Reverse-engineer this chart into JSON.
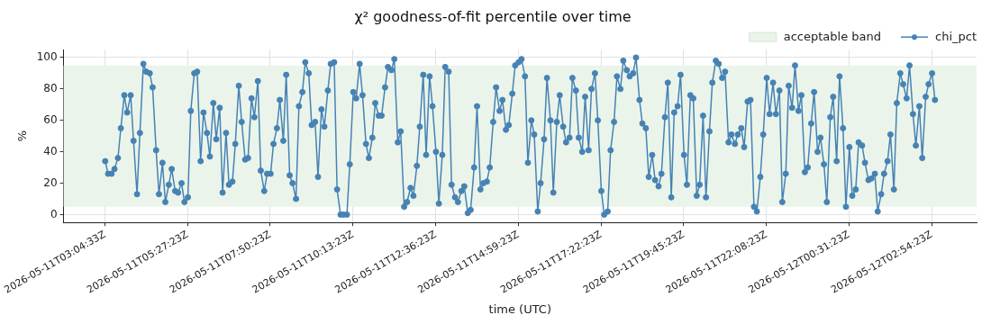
{
  "chart_data": {
    "type": "line",
    "title": "χ² goodness-of-fit percentile over time",
    "xlabel": "time (UTC)",
    "ylabel": "%",
    "x": [
      "2026-05-11T03:05",
      "2026-05-11T03:10",
      "2026-05-11T03:16",
      "2026-05-11T03:21",
      "2026-05-11T03:27",
      "2026-05-11T03:32",
      "2026-05-11T03:38",
      "2026-05-11T03:43",
      "2026-05-11T03:49",
      "2026-05-11T03:54",
      "2026-05-11T04:00",
      "2026-05-11T04:05",
      "2026-05-11T04:11",
      "2026-05-11T04:16",
      "2026-05-11T04:22",
      "2026-05-11T04:27",
      "2026-05-11T04:33",
      "2026-05-11T04:38",
      "2026-05-11T04:44",
      "2026-05-11T04:49",
      "2026-05-11T04:55",
      "2026-05-11T05:00",
      "2026-05-11T05:06",
      "2026-05-11T05:11",
      "2026-05-11T05:17",
      "2026-05-11T05:22",
      "2026-05-11T05:28",
      "2026-05-11T05:33",
      "2026-05-11T05:39",
      "2026-05-11T05:44",
      "2026-05-11T05:50",
      "2026-05-11T05:55",
      "2026-05-11T06:01",
      "2026-05-11T06:06",
      "2026-05-11T06:12",
      "2026-05-11T06:17",
      "2026-05-11T06:23",
      "2026-05-11T06:28",
      "2026-05-11T06:34",
      "2026-05-11T06:39",
      "2026-05-11T06:45",
      "2026-05-11T06:50",
      "2026-05-11T06:56",
      "2026-05-11T07:01",
      "2026-05-11T07:07",
      "2026-05-11T07:12",
      "2026-05-11T07:18",
      "2026-05-11T07:23",
      "2026-05-11T07:29",
      "2026-05-11T07:34",
      "2026-05-11T07:40",
      "2026-05-11T07:45",
      "2026-05-11T07:51",
      "2026-05-11T07:56",
      "2026-05-11T08:02",
      "2026-05-11T08:07",
      "2026-05-11T08:13",
      "2026-05-11T08:18",
      "2026-05-11T08:24",
      "2026-05-11T08:29",
      "2026-05-11T08:35",
      "2026-05-11T08:40",
      "2026-05-11T08:46",
      "2026-05-11T08:51",
      "2026-05-11T08:57",
      "2026-05-11T09:02",
      "2026-05-11T09:08",
      "2026-05-11T09:13",
      "2026-05-11T09:19",
      "2026-05-11T09:24",
      "2026-05-11T09:30",
      "2026-05-11T09:35",
      "2026-05-11T09:41",
      "2026-05-11T09:46",
      "2026-05-11T09:52",
      "2026-05-11T09:57",
      "2026-05-11T10:03",
      "2026-05-11T10:08",
      "2026-05-11T10:14",
      "2026-05-11T10:19",
      "2026-05-11T10:25",
      "2026-05-11T10:30",
      "2026-05-11T10:36",
      "2026-05-11T10:41",
      "2026-05-11T10:47",
      "2026-05-11T10:52",
      "2026-05-11T10:58",
      "2026-05-11T11:03",
      "2026-05-11T11:09",
      "2026-05-11T11:14",
      "2026-05-11T11:20",
      "2026-05-11T11:25",
      "2026-05-11T11:31",
      "2026-05-11T11:36",
      "2026-05-11T11:42",
      "2026-05-11T11:47",
      "2026-05-11T11:53",
      "2026-05-11T11:58",
      "2026-05-11T12:04",
      "2026-05-11T12:09",
      "2026-05-11T12:15",
      "2026-05-11T12:20",
      "2026-05-11T12:26",
      "2026-05-11T12:31",
      "2026-05-11T12:37",
      "2026-05-11T12:42",
      "2026-05-11T12:48",
      "2026-05-11T12:53",
      "2026-05-11T12:59",
      "2026-05-11T13:04",
      "2026-05-11T13:10",
      "2026-05-11T13:15",
      "2026-05-11T13:21",
      "2026-05-11T13:26",
      "2026-05-11T13:32",
      "2026-05-11T13:37",
      "2026-05-11T13:43",
      "2026-05-11T13:48",
      "2026-05-11T13:54",
      "2026-05-11T13:59",
      "2026-05-11T14:05",
      "2026-05-11T14:10",
      "2026-05-11T14:16",
      "2026-05-11T14:21",
      "2026-05-11T14:27",
      "2026-05-11T14:32",
      "2026-05-11T14:38",
      "2026-05-11T14:43",
      "2026-05-11T14:49",
      "2026-05-11T14:54",
      "2026-05-11T15:00",
      "2026-05-11T15:05",
      "2026-05-11T15:11",
      "2026-05-11T15:16",
      "2026-05-11T15:22",
      "2026-05-11T15:27",
      "2026-05-11T15:33",
      "2026-05-11T15:38",
      "2026-05-11T15:44",
      "2026-05-11T15:49",
      "2026-05-11T15:55",
      "2026-05-11T16:00",
      "2026-05-11T16:06",
      "2026-05-11T16:11",
      "2026-05-11T16:17",
      "2026-05-11T16:22",
      "2026-05-11T16:28",
      "2026-05-11T16:33",
      "2026-05-11T16:39",
      "2026-05-11T16:44",
      "2026-05-11T16:50",
      "2026-05-11T16:55",
      "2026-05-11T17:01",
      "2026-05-11T17:06",
      "2026-05-11T17:12",
      "2026-05-11T17:17",
      "2026-05-11T17:23",
      "2026-05-11T17:28",
      "2026-05-11T17:34",
      "2026-05-11T17:39",
      "2026-05-11T17:45",
      "2026-05-11T17:50",
      "2026-05-11T17:56",
      "2026-05-11T18:01",
      "2026-05-11T18:07",
      "2026-05-11T18:12",
      "2026-05-11T18:18",
      "2026-05-11T18:23",
      "2026-05-11T18:29",
      "2026-05-11T18:34",
      "2026-05-11T18:40",
      "2026-05-11T18:45",
      "2026-05-11T18:51",
      "2026-05-11T18:56",
      "2026-05-11T19:02",
      "2026-05-11T19:07",
      "2026-05-11T19:13",
      "2026-05-11T19:18",
      "2026-05-11T19:24",
      "2026-05-11T19:29",
      "2026-05-11T19:35",
      "2026-05-11T19:40",
      "2026-05-11T19:46",
      "2026-05-11T19:51",
      "2026-05-11T19:57",
      "2026-05-11T20:02",
      "2026-05-11T20:08",
      "2026-05-11T20:13",
      "2026-05-11T20:19",
      "2026-05-11T20:24",
      "2026-05-11T20:30",
      "2026-05-11T20:35",
      "2026-05-11T20:41",
      "2026-05-11T20:46",
      "2026-05-11T20:52",
      "2026-05-11T20:57",
      "2026-05-11T21:03",
      "2026-05-11T21:08",
      "2026-05-11T21:14",
      "2026-05-11T21:19",
      "2026-05-11T21:25",
      "2026-05-11T21:30",
      "2026-05-11T21:36",
      "2026-05-11T21:41",
      "2026-05-11T21:47",
      "2026-05-11T21:52",
      "2026-05-11T21:58",
      "2026-05-11T22:03",
      "2026-05-11T22:09",
      "2026-05-11T22:14",
      "2026-05-11T22:20",
      "2026-05-11T22:25",
      "2026-05-11T22:31",
      "2026-05-11T22:36",
      "2026-05-11T22:42",
      "2026-05-11T22:47",
      "2026-05-11T22:53",
      "2026-05-11T22:58",
      "2026-05-11T23:04",
      "2026-05-11T23:09",
      "2026-05-11T23:15",
      "2026-05-11T23:20",
      "2026-05-11T23:26",
      "2026-05-11T23:31",
      "2026-05-11T23:37",
      "2026-05-11T23:42",
      "2026-05-11T23:48",
      "2026-05-11T23:53",
      "2026-05-11T23:59",
      "2026-05-12T00:04",
      "2026-05-12T00:10",
      "2026-05-12T00:15",
      "2026-05-12T00:21",
      "2026-05-12T00:26",
      "2026-05-12T00:32",
      "2026-05-12T00:37",
      "2026-05-12T00:43",
      "2026-05-12T00:48",
      "2026-05-12T00:54",
      "2026-05-12T00:59",
      "2026-05-12T01:05",
      "2026-05-12T01:10",
      "2026-05-12T01:16",
      "2026-05-12T01:21",
      "2026-05-12T01:27",
      "2026-05-12T01:32",
      "2026-05-12T01:38",
      "2026-05-12T01:43",
      "2026-05-12T01:49",
      "2026-05-12T01:54",
      "2026-05-12T02:00",
      "2026-05-12T02:05",
      "2026-05-12T02:11",
      "2026-05-12T02:16",
      "2026-05-12T02:22",
      "2026-05-12T02:27",
      "2026-05-12T02:33",
      "2026-05-12T02:38",
      "2026-05-12T02:44",
      "2026-05-12T02:49",
      "2026-05-12T02:55",
      "2026-05-12T03:00"
    ],
    "series": [
      {
        "name": "chi_pct",
        "color": "#4682b4",
        "values": [
          34,
          26,
          26,
          29,
          36,
          55,
          76,
          65,
          76,
          47,
          13,
          52,
          96,
          91,
          90,
          81,
          41,
          13,
          33,
          8,
          19,
          29,
          15,
          14,
          20,
          8,
          11,
          66,
          90,
          91,
          34,
          65,
          52,
          37,
          71,
          48,
          68,
          14,
          52,
          19,
          21,
          45,
          82,
          59,
          35,
          36,
          74,
          62,
          85,
          28,
          15,
          26,
          26,
          45,
          55,
          73,
          47,
          89,
          25,
          20,
          10,
          69,
          78,
          97,
          90,
          57,
          59,
          24,
          67,
          56,
          79,
          96,
          97,
          16,
          0,
          0,
          0,
          32,
          78,
          74,
          96,
          76,
          45,
          36,
          49,
          71,
          63,
          63,
          81,
          94,
          92,
          99,
          46,
          53,
          5,
          8,
          17,
          12,
          31,
          56,
          89,
          38,
          88,
          69,
          40,
          7,
          38,
          94,
          91,
          19,
          11,
          8,
          15,
          18,
          1,
          3,
          30,
          69,
          16,
          20,
          21,
          30,
          59,
          81,
          66,
          73,
          54,
          57,
          77,
          95,
          97,
          99,
          88,
          33,
          60,
          51,
          2,
          20,
          48,
          87,
          60,
          14,
          59,
          76,
          56,
          46,
          49,
          87,
          79,
          49,
          40,
          75,
          41,
          80,
          90,
          60,
          15,
          0,
          2,
          41,
          59,
          88,
          80,
          98,
          92,
          88,
          90,
          100,
          73,
          58,
          55,
          24,
          38,
          22,
          18,
          26,
          62,
          84,
          11,
          65,
          69,
          89,
          38,
          19,
          76,
          74,
          12,
          19,
          63,
          11,
          53,
          84,
          98,
          96,
          87,
          91,
          46,
          51,
          45,
          51,
          55,
          43,
          72,
          73,
          5,
          2,
          24,
          51,
          87,
          64,
          84,
          64,
          79,
          8,
          26,
          82,
          68,
          95,
          66,
          76,
          27,
          30,
          58,
          78,
          40,
          49,
          32,
          8,
          62,
          75,
          34,
          88,
          55,
          5,
          43,
          12,
          16,
          46,
          44,
          33,
          22,
          23,
          26,
          2,
          13,
          26,
          34,
          51,
          16,
          71,
          90,
          83,
          74,
          95,
          64,
          44,
          69,
          36,
          75,
          83,
          90,
          73
        ]
      }
    ],
    "bands": [
      {
        "axis": "y",
        "from": 5,
        "to": 95,
        "label": "acceptable band",
        "color": "#eaf4ea"
      }
    ],
    "xlim": [
      "2026-05-11T01:53",
      "2026-05-12T04:12"
    ],
    "xticks": [
      {
        "value": "2026-05-11T03:04:33",
        "label": "2026-05-11T03:04:33Z"
      },
      {
        "value": "2026-05-11T05:27:23",
        "label": "2026-05-11T05:27:23Z"
      },
      {
        "value": "2026-05-11T07:50:23",
        "label": "2026-05-11T07:50:23Z"
      },
      {
        "value": "2026-05-11T10:13:23",
        "label": "2026-05-11T10:13:23Z"
      },
      {
        "value": "2026-05-11T12:36:23",
        "label": "2026-05-11T12:36:23Z"
      },
      {
        "value": "2026-05-11T14:59:23",
        "label": "2026-05-11T14:59:23Z"
      },
      {
        "value": "2026-05-11T17:22:23",
        "label": "2026-05-11T17:22:23Z"
      },
      {
        "value": "2026-05-11T19:45:23",
        "label": "2026-05-11T19:45:23Z"
      },
      {
        "value": "2026-05-11T22:08:23",
        "label": "2026-05-11T22:08:23Z"
      },
      {
        "value": "2026-05-12T00:31:23",
        "label": "2026-05-12T00:31:23Z"
      },
      {
        "value": "2026-05-12T02:54:23",
        "label": "2026-05-12T02:54:23Z"
      }
    ],
    "ylim": [
      -5,
      105
    ],
    "yticks": [
      0,
      20,
      40,
      60,
      80,
      100
    ],
    "grid": true,
    "legend": "top right",
    "marker": "circle"
  }
}
